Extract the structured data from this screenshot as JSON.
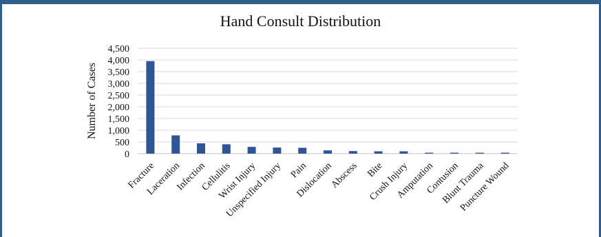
{
  "chart_data": {
    "type": "bar",
    "title": "Hand Consult Distribution",
    "xlabel": "",
    "ylabel": "Number of Cases",
    "ylim": [
      0,
      4500
    ],
    "yticks": [
      "0",
      "500",
      "1,000",
      "1,500",
      "2,000",
      "2,500",
      "3,000",
      "3,500",
      "4,000",
      "4,500"
    ],
    "ytick_values": [
      0,
      500,
      1000,
      1500,
      2000,
      2500,
      3000,
      3500,
      4000,
      4500
    ],
    "grid": true,
    "legend": "none",
    "categories": [
      "Fracture",
      "Laceration",
      "Infection",
      "Cellulitis",
      "Wrist Injury",
      "Unspecified Injury",
      "Pain",
      "Dislocation",
      "Abscess",
      "Bite",
      "Crush Injury",
      "Amputation",
      "Contusion",
      "Blunt Trauma",
      "Puncture Wound"
    ],
    "values": [
      3950,
      780,
      440,
      400,
      290,
      260,
      250,
      140,
      110,
      100,
      100,
      40,
      40,
      40,
      40
    ],
    "colors": {
      "bar": "#2f5597",
      "grid": "#d9d9d9",
      "border": "#2f5f8a"
    }
  }
}
